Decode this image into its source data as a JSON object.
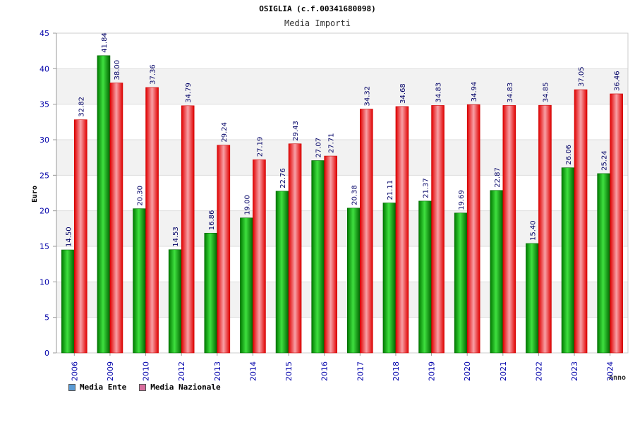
{
  "chart_data": {
    "type": "bar",
    "title": "OSIGLIA (c.f.00341680098)",
    "subtitle": "Media Importi",
    "xlabel": "Anno",
    "ylabel": "Euro",
    "ylim": [
      0,
      45
    ],
    "yticks": [
      0,
      5,
      10,
      15,
      20,
      25,
      30,
      35,
      40,
      45
    ],
    "grid": true,
    "legend_position": "bottom-left",
    "categories": [
      "2006",
      "2009",
      "2010",
      "2012",
      "2013",
      "2014",
      "2015",
      "2016",
      "2017",
      "2018",
      "2019",
      "2020",
      "2021",
      "2022",
      "2023",
      "2024"
    ],
    "series": [
      {
        "name": "Media Ente",
        "color": "#1fae1f",
        "legend_color": "#5b9bd5",
        "values": [
          14.5,
          41.84,
          20.3,
          14.53,
          16.86,
          19.0,
          22.76,
          27.07,
          20.38,
          21.11,
          21.37,
          19.69,
          22.87,
          15.4,
          26.06,
          25.24
        ]
      },
      {
        "name": "Media Nazionale",
        "color": "#e8202a",
        "legend_color": "#d86e9e",
        "values": [
          32.82,
          38.0,
          37.36,
          34.79,
          29.24,
          27.19,
          29.43,
          27.71,
          34.32,
          34.68,
          34.83,
          34.94,
          34.83,
          34.85,
          37.05,
          36.46
        ]
      }
    ]
  }
}
